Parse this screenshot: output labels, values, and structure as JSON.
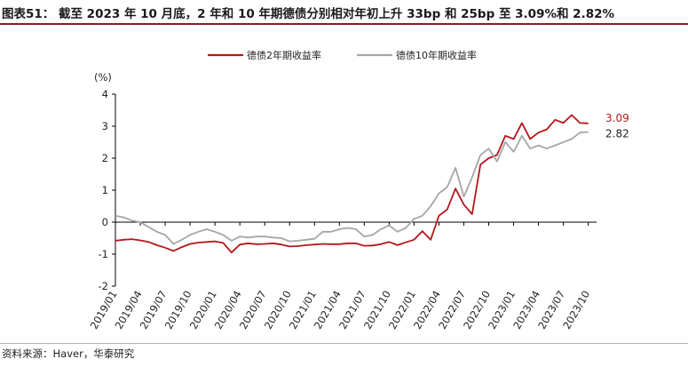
{
  "figure": {
    "title": "图表51： 截至 2023 年 10 月底，2 年和 10 年期德债分别相对年初上升 33bp 和 25bp 至 3.09%和 2.82%",
    "source": "资料来源：Haver，华泰研究",
    "accent_color": "#8b1a1a"
  },
  "chart_data": {
    "type": "line",
    "title": "截至 2023 年 10 月底，2 年和 10 年期德债分别相对年初上升 33bp 和 25bp 至 3.09%和 2.82%",
    "ylabel": "(%)",
    "xlabel": "",
    "ylim": [
      -2,
      4
    ],
    "yticks": [
      "-2",
      "-1",
      "0",
      "1",
      "2",
      "3",
      "4"
    ],
    "xlim": [
      "2019-01",
      "2023-11"
    ],
    "xticks": [
      "2019/01",
      "2019/04",
      "2019/07",
      "2019/10",
      "2020/01",
      "2020/04",
      "2020/07",
      "2020/10",
      "2021/01",
      "2021/04",
      "2021/07",
      "2021/10",
      "2022/01",
      "2022/04",
      "2022/07",
      "2022/10",
      "2023/01",
      "2023/04",
      "2023/07",
      "2023/10"
    ],
    "grid": false,
    "legend_position": "top",
    "series": [
      {
        "name": "德债2年期收益率",
        "color": "#b2171c",
        "end_label": "3.09",
        "points": [
          [
            "2019-01",
            -0.58
          ],
          [
            "2019-02",
            -0.55
          ],
          [
            "2019-03",
            -0.53
          ],
          [
            "2019-04",
            -0.57
          ],
          [
            "2019-05",
            -0.62
          ],
          [
            "2019-06",
            -0.72
          ],
          [
            "2019-07",
            -0.8
          ],
          [
            "2019-08",
            -0.9
          ],
          [
            "2019-09",
            -0.78
          ],
          [
            "2019-10",
            -0.68
          ],
          [
            "2019-11",
            -0.64
          ],
          [
            "2019-12",
            -0.62
          ],
          [
            "2020-01",
            -0.6
          ],
          [
            "2020-02",
            -0.65
          ],
          [
            "2020-03",
            -0.95
          ],
          [
            "2020-04",
            -0.7
          ],
          [
            "2020-05",
            -0.66
          ],
          [
            "2020-06",
            -0.69
          ],
          [
            "2020-07",
            -0.68
          ],
          [
            "2020-08",
            -0.66
          ],
          [
            "2020-09",
            -0.7
          ],
          [
            "2020-10",
            -0.76
          ],
          [
            "2020-11",
            -0.75
          ],
          [
            "2020-12",
            -0.72
          ],
          [
            "2021-01",
            -0.7
          ],
          [
            "2021-02",
            -0.68
          ],
          [
            "2021-03",
            -0.69
          ],
          [
            "2021-04",
            -0.69
          ],
          [
            "2021-05",
            -0.66
          ],
          [
            "2021-06",
            -0.66
          ],
          [
            "2021-07",
            -0.74
          ],
          [
            "2021-08",
            -0.73
          ],
          [
            "2021-09",
            -0.69
          ],
          [
            "2021-10",
            -0.62
          ],
          [
            "2021-11",
            -0.72
          ],
          [
            "2021-12",
            -0.63
          ],
          [
            "2022-01",
            -0.55
          ],
          [
            "2022-02",
            -0.28
          ],
          [
            "2022-03",
            -0.55
          ],
          [
            "2022-04",
            0.2
          ],
          [
            "2022-05",
            0.4
          ],
          [
            "2022-06",
            1.05
          ],
          [
            "2022-07",
            0.55
          ],
          [
            "2022-08",
            0.25
          ],
          [
            "2022-09",
            1.8
          ],
          [
            "2022-10",
            2.0
          ],
          [
            "2022-11",
            2.1
          ],
          [
            "2022-12",
            2.7
          ],
          [
            "2023-01",
            2.6
          ],
          [
            "2023-02",
            3.1
          ],
          [
            "2023-03",
            2.6
          ],
          [
            "2023-04",
            2.8
          ],
          [
            "2023-05",
            2.9
          ],
          [
            "2023-06",
            3.2
          ],
          [
            "2023-07",
            3.1
          ],
          [
            "2023-08",
            3.35
          ],
          [
            "2023-09",
            3.1
          ],
          [
            "2023-10",
            3.09
          ]
        ]
      },
      {
        "name": "德债10年期收益率",
        "color": "#a6a6a6",
        "end_label": "2.82",
        "points": [
          [
            "2019-01",
            0.2
          ],
          [
            "2019-02",
            0.15
          ],
          [
            "2019-03",
            0.05
          ],
          [
            "2019-04",
            0.0
          ],
          [
            "2019-05",
            -0.15
          ],
          [
            "2019-06",
            -0.3
          ],
          [
            "2019-07",
            -0.4
          ],
          [
            "2019-08",
            -0.68
          ],
          [
            "2019-09",
            -0.55
          ],
          [
            "2019-10",
            -0.4
          ],
          [
            "2019-11",
            -0.3
          ],
          [
            "2019-12",
            -0.22
          ],
          [
            "2020-01",
            -0.3
          ],
          [
            "2020-02",
            -0.4
          ],
          [
            "2020-03",
            -0.58
          ],
          [
            "2020-04",
            -0.45
          ],
          [
            "2020-05",
            -0.48
          ],
          [
            "2020-06",
            -0.45
          ],
          [
            "2020-07",
            -0.45
          ],
          [
            "2020-08",
            -0.48
          ],
          [
            "2020-09",
            -0.5
          ],
          [
            "2020-10",
            -0.6
          ],
          [
            "2020-11",
            -0.58
          ],
          [
            "2020-12",
            -0.55
          ],
          [
            "2021-01",
            -0.52
          ],
          [
            "2021-02",
            -0.3
          ],
          [
            "2021-03",
            -0.3
          ],
          [
            "2021-04",
            -0.22
          ],
          [
            "2021-05",
            -0.18
          ],
          [
            "2021-06",
            -0.22
          ],
          [
            "2021-07",
            -0.45
          ],
          [
            "2021-08",
            -0.4
          ],
          [
            "2021-09",
            -0.22
          ],
          [
            "2021-10",
            -0.1
          ],
          [
            "2021-11",
            -0.3
          ],
          [
            "2021-12",
            -0.18
          ],
          [
            "2022-01",
            0.1
          ],
          [
            "2022-02",
            0.2
          ],
          [
            "2022-03",
            0.5
          ],
          [
            "2022-04",
            0.9
          ],
          [
            "2022-05",
            1.1
          ],
          [
            "2022-06",
            1.7
          ],
          [
            "2022-07",
            0.8
          ],
          [
            "2022-08",
            1.4
          ],
          [
            "2022-09",
            2.1
          ],
          [
            "2022-10",
            2.3
          ],
          [
            "2022-11",
            1.9
          ],
          [
            "2022-12",
            2.5
          ],
          [
            "2023-01",
            2.2
          ],
          [
            "2023-02",
            2.7
          ],
          [
            "2023-03",
            2.3
          ],
          [
            "2023-04",
            2.4
          ],
          [
            "2023-05",
            2.3
          ],
          [
            "2023-06",
            2.4
          ],
          [
            "2023-07",
            2.5
          ],
          [
            "2023-08",
            2.6
          ],
          [
            "2023-09",
            2.8
          ],
          [
            "2023-10",
            2.82
          ]
        ]
      }
    ]
  }
}
